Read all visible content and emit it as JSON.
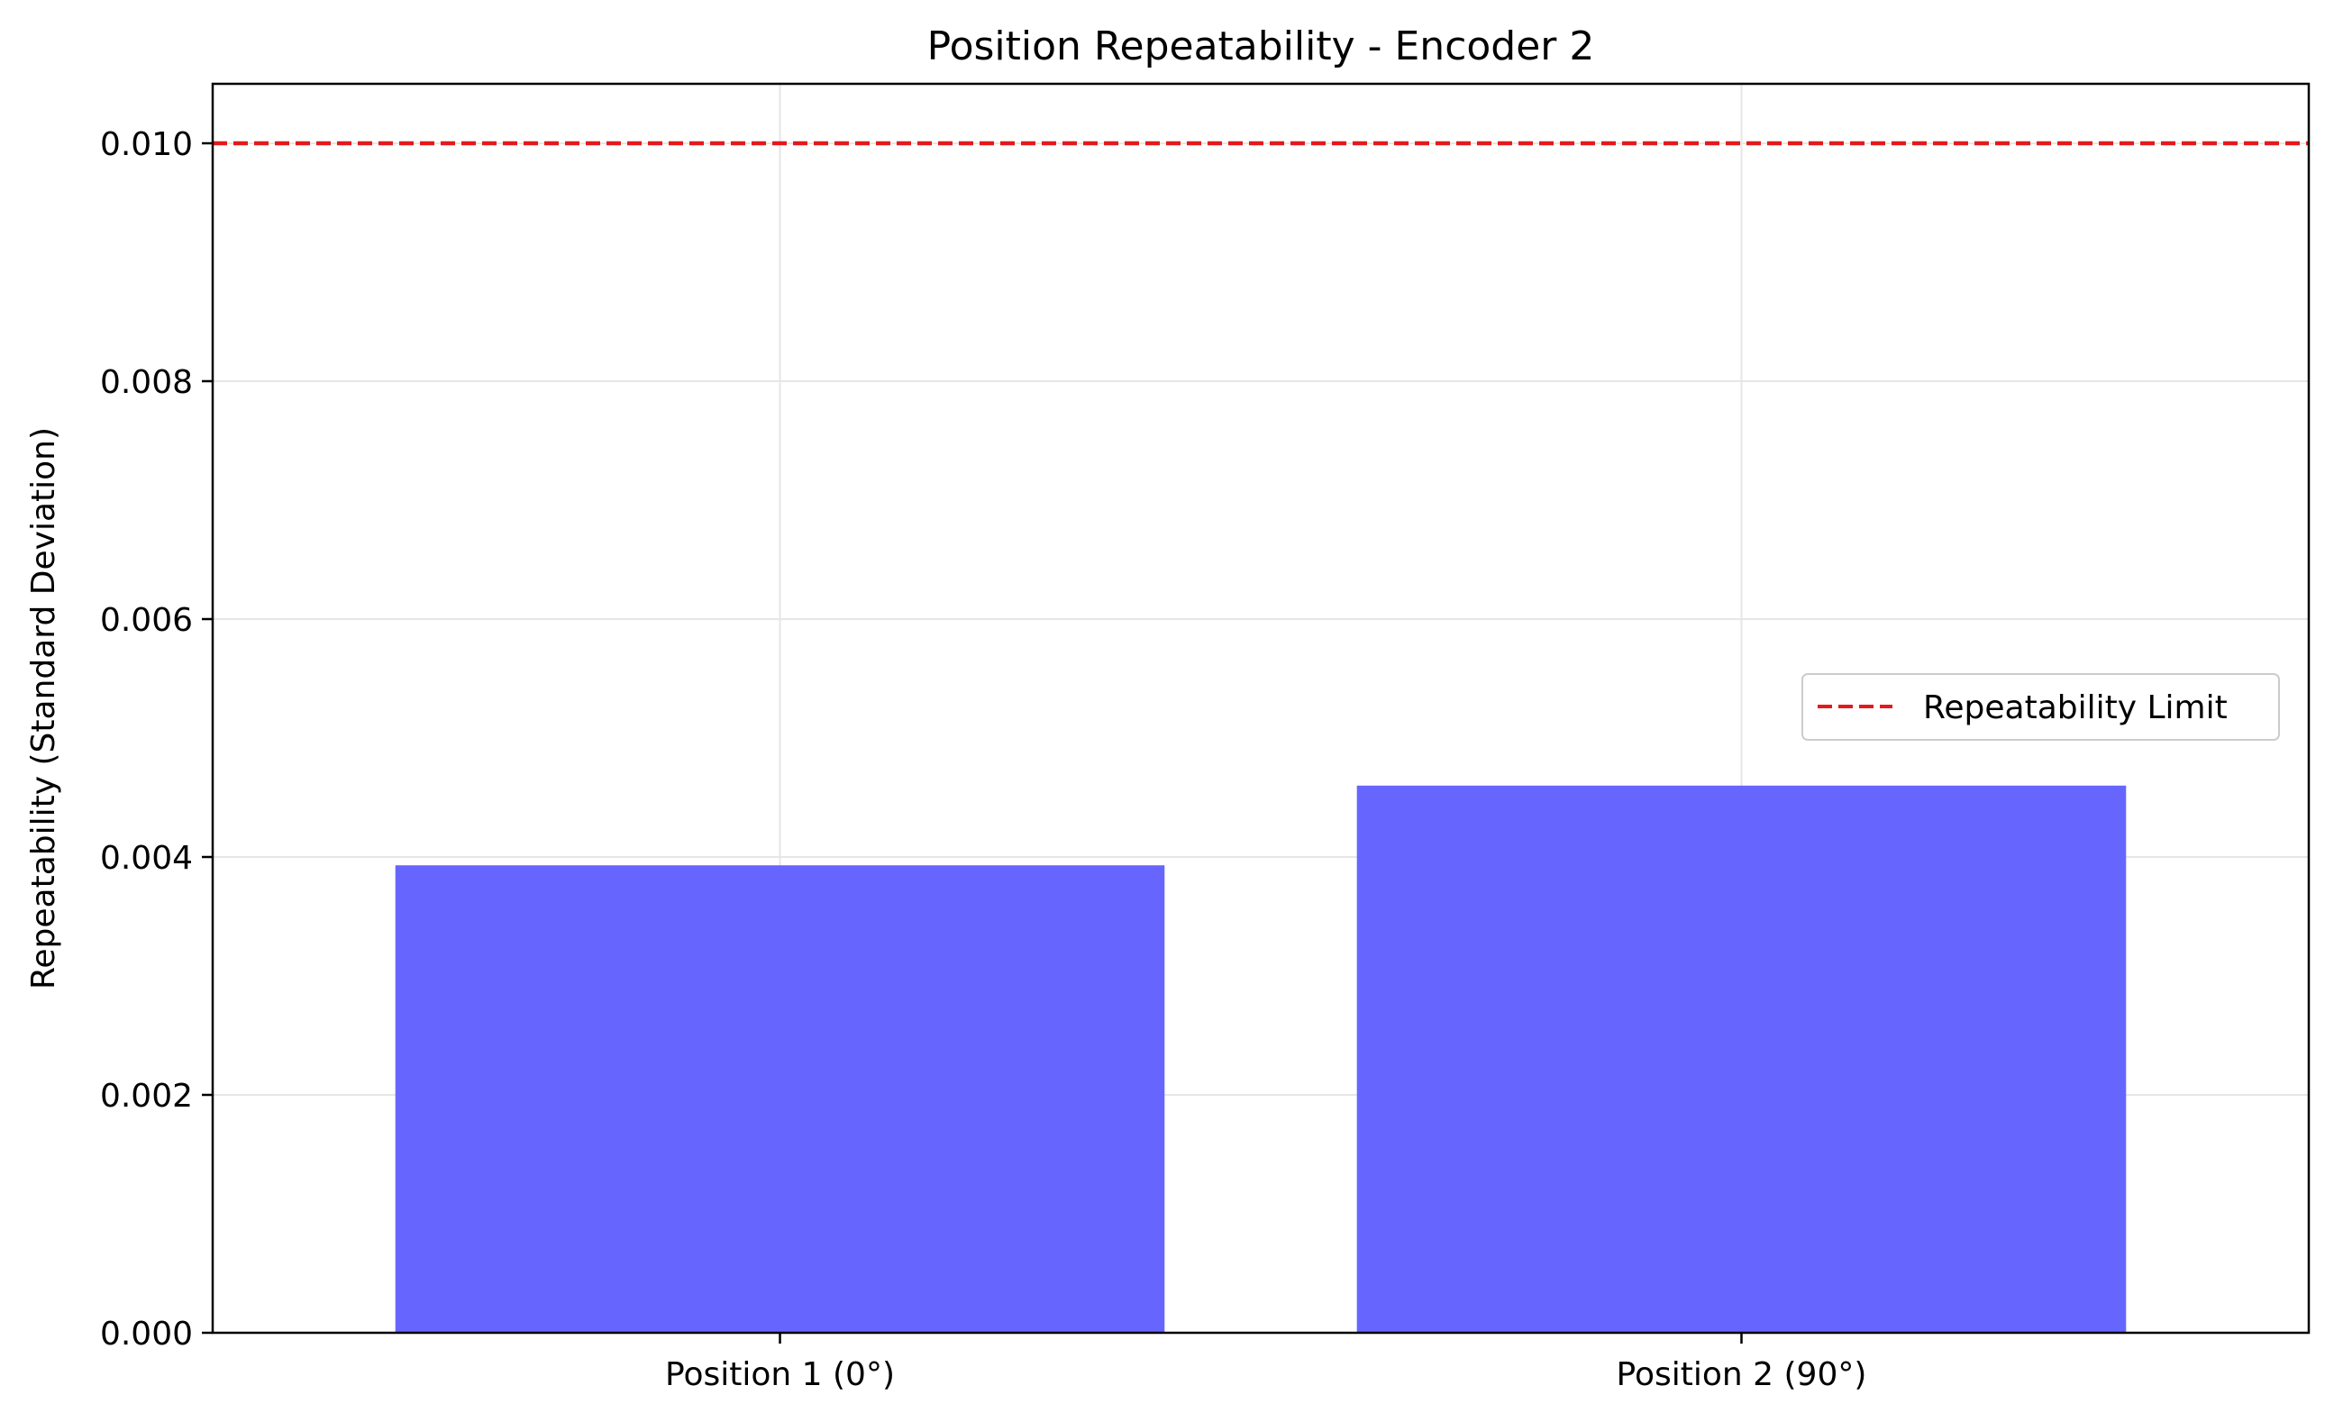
{
  "chart_data": {
    "type": "bar",
    "title": "Position Repeatability - Encoder 2",
    "xlabel": "",
    "ylabel": "Repeatability (Standard Deviation)",
    "categories": [
      "Position 1 (0°)",
      "Position 2 (90°)"
    ],
    "values": [
      0.00393,
      0.0046
    ],
    "ylim": [
      0,
      0.0105
    ],
    "yticks": [
      0.0,
      0.002,
      0.004,
      0.006,
      0.008,
      0.01
    ],
    "ytick_labels": [
      "0.000",
      "0.002",
      "0.004",
      "0.006",
      "0.008",
      "0.010"
    ],
    "bar_color": "#6666ff",
    "grid": true,
    "reference_line": {
      "name": "Repeatability Limit",
      "value": 0.01,
      "color": "#e31a1c",
      "style": "dashed"
    },
    "legend": {
      "placement": "right",
      "entries": [
        "Repeatability Limit"
      ]
    }
  }
}
